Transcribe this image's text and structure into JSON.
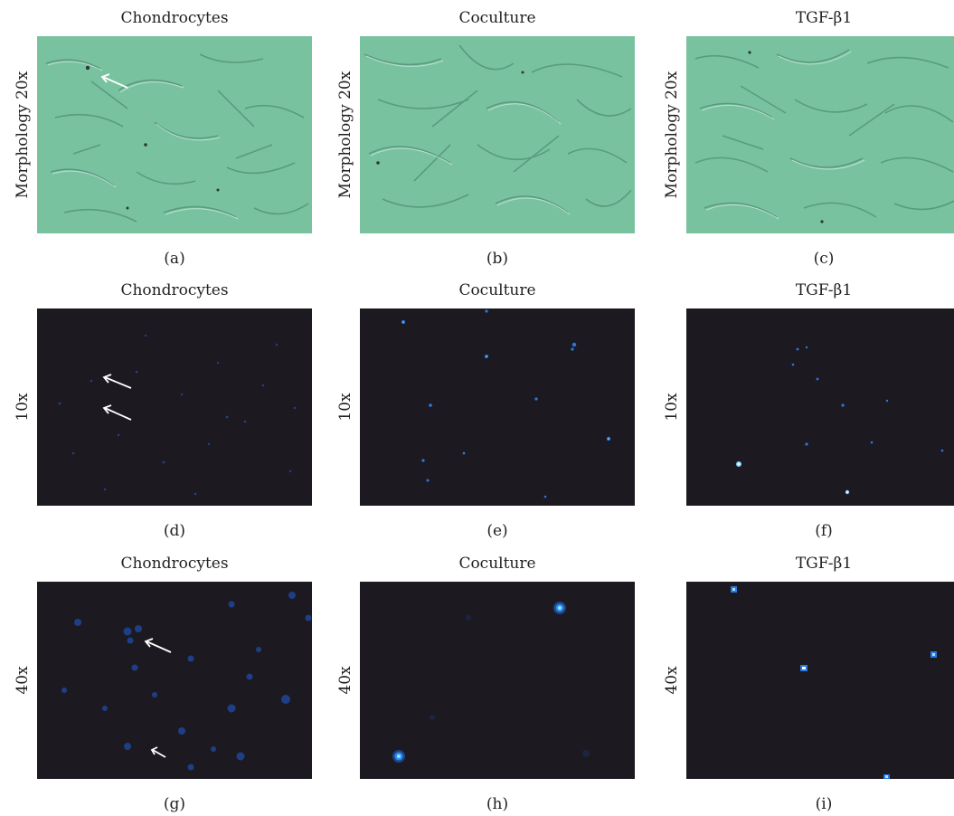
{
  "colors": {
    "brightfield": "#79c2a0",
    "fluorescence_bg": "#1c1a20",
    "nucleus": "#1f5fd6",
    "nucleus_bright": "#7fd0ff"
  },
  "panels": [
    {
      "id": "a",
      "column_title": "Chondrocytes",
      "side_label": "Morphology 20x",
      "sub_label": "(a)",
      "kind": "brightfield",
      "arrows": 1
    },
    {
      "id": "b",
      "column_title": "Coculture",
      "side_label": "Morphology 20x",
      "sub_label": "(b)",
      "kind": "brightfield",
      "arrows": 0
    },
    {
      "id": "c",
      "column_title": "TGF-β1",
      "side_label": "Morphology 20x",
      "sub_label": "(c)",
      "kind": "brightfield",
      "arrows": 0
    },
    {
      "id": "d",
      "column_title": "Chondrocytes",
      "side_label": "10x",
      "sub_label": "(d)",
      "kind": "fluorescence",
      "arrows": 2
    },
    {
      "id": "e",
      "column_title": "Coculture",
      "side_label": "10x",
      "sub_label": "(e)",
      "kind": "fluorescence",
      "arrows": 0
    },
    {
      "id": "f",
      "column_title": "TGF-β1",
      "side_label": "10x",
      "sub_label": "(f)",
      "kind": "fluorescence",
      "arrows": 0
    },
    {
      "id": "g",
      "column_title": "Chondrocytes",
      "side_label": "40x",
      "sub_label": "(g)",
      "kind": "fluorescence",
      "arrows": 2
    },
    {
      "id": "h",
      "column_title": "Coculture",
      "side_label": "40x",
      "sub_label": "(h)",
      "kind": "fluorescence",
      "arrows": 0
    },
    {
      "id": "i",
      "column_title": "TGF-β1",
      "side_label": "40x",
      "sub_label": "(i)",
      "kind": "fluorescence",
      "arrows": 0
    }
  ]
}
